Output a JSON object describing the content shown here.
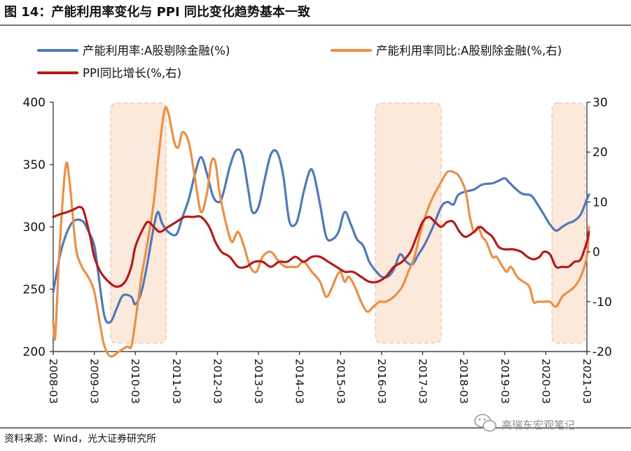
{
  "chart_data": {
    "type": "line",
    "title": "图 14：产能利用率变化与 PPI 同比变化趋势基本一致",
    "source": "资料来源：Wind，光大证券研究所",
    "watermark": "高瑞东宏观笔记",
    "x_start": "2008-03",
    "x_end": "2021-03",
    "x_tick_labels": [
      "2008-03",
      "2009-03",
      "2010-03",
      "2011-03",
      "2012-03",
      "2013-03",
      "2014-03",
      "2015-03",
      "2016-03",
      "2017-03",
      "2018-03",
      "2019-03",
      "2020-03",
      "2021-03"
    ],
    "y_left": {
      "min": 200,
      "max": 400,
      "ticks": [
        200,
        250,
        300,
        350,
        400
      ],
      "ylim": [
        200,
        400
      ]
    },
    "y_right": {
      "min": -20,
      "max": 30,
      "ticks": [
        -20,
        -10,
        0,
        10,
        20,
        30
      ],
      "ylim": [
        -20,
        30
      ]
    },
    "shaded_periods": [
      {
        "start": 2009.4,
        "end": 2010.75
      },
      {
        "start": 2015.85,
        "end": 2017.45
      },
      {
        "start": 2020.15,
        "end": 2020.95
      }
    ],
    "series": [
      {
        "name": "产能利用率:A股剔除金融(%)",
        "axis": "left",
        "color": "#4f79b8",
        "points": [
          [
            2008.0,
            248
          ],
          [
            2008.2,
            282
          ],
          [
            2008.45,
            303
          ],
          [
            2008.7,
            305
          ],
          [
            2008.85,
            297
          ],
          [
            2009.0,
            285
          ],
          [
            2009.1,
            262
          ],
          [
            2009.25,
            228
          ],
          [
            2009.4,
            224
          ],
          [
            2009.55,
            235
          ],
          [
            2009.7,
            245
          ],
          [
            2009.9,
            244
          ],
          [
            2010.0,
            238
          ],
          [
            2010.15,
            248
          ],
          [
            2010.3,
            272
          ],
          [
            2010.45,
            300
          ],
          [
            2010.55,
            312
          ],
          [
            2010.65,
            303
          ],
          [
            2010.8,
            296
          ],
          [
            2011.0,
            294
          ],
          [
            2011.15,
            308
          ],
          [
            2011.3,
            322
          ],
          [
            2011.45,
            342
          ],
          [
            2011.6,
            356
          ],
          [
            2011.75,
            342
          ],
          [
            2011.9,
            324
          ],
          [
            2012.05,
            320
          ],
          [
            2012.15,
            328
          ],
          [
            2012.3,
            348
          ],
          [
            2012.45,
            361
          ],
          [
            2012.6,
            358
          ],
          [
            2012.75,
            330
          ],
          [
            2012.85,
            312
          ],
          [
            2013.0,
            316
          ],
          [
            2013.15,
            338
          ],
          [
            2013.3,
            358
          ],
          [
            2013.45,
            360
          ],
          [
            2013.6,
            342
          ],
          [
            2013.75,
            305
          ],
          [
            2013.9,
            302
          ],
          [
            2014.0,
            312
          ],
          [
            2014.1,
            328
          ],
          [
            2014.25,
            345
          ],
          [
            2014.35,
            342
          ],
          [
            2014.5,
            318
          ],
          [
            2014.65,
            292
          ],
          [
            2014.8,
            290
          ],
          [
            2014.95,
            296
          ],
          [
            2015.1,
            312
          ],
          [
            2015.25,
            302
          ],
          [
            2015.4,
            290
          ],
          [
            2015.55,
            285
          ],
          [
            2015.7,
            272
          ],
          [
            2015.85,
            265
          ],
          [
            2016.0,
            260
          ],
          [
            2016.15,
            260
          ],
          [
            2016.3,
            266
          ],
          [
            2016.45,
            278
          ],
          [
            2016.6,
            272
          ],
          [
            2016.75,
            270
          ],
          [
            2016.9,
            278
          ],
          [
            2017.05,
            286
          ],
          [
            2017.25,
            300
          ],
          [
            2017.45,
            316
          ],
          [
            2017.6,
            320
          ],
          [
            2017.75,
            318
          ],
          [
            2017.85,
            325
          ],
          [
            2018.0,
            328
          ],
          [
            2018.25,
            330
          ],
          [
            2018.45,
            334
          ],
          [
            2018.7,
            335
          ],
          [
            2018.85,
            337
          ],
          [
            2019.0,
            339
          ],
          [
            2019.1,
            336
          ],
          [
            2019.25,
            331
          ],
          [
            2019.4,
            327
          ],
          [
            2019.5,
            326
          ],
          [
            2019.65,
            325
          ],
          [
            2019.8,
            318
          ],
          [
            2019.95,
            310
          ],
          [
            2020.1,
            302
          ],
          [
            2020.25,
            297
          ],
          [
            2020.4,
            300
          ],
          [
            2020.55,
            303
          ],
          [
            2020.7,
            305
          ],
          [
            2020.85,
            310
          ],
          [
            2021.0,
            322
          ],
          [
            2021.05,
            326
          ]
        ]
      },
      {
        "name": "产能利用率同比:A股剔除金融(%,右)",
        "axis": "right",
        "color": "#eb8f46",
        "points": [
          [
            2008.0,
            -14
          ],
          [
            2008.05,
            -17
          ],
          [
            2008.15,
            0
          ],
          [
            2008.3,
            17
          ],
          [
            2008.4,
            14
          ],
          [
            2008.55,
            1
          ],
          [
            2008.7,
            -3
          ],
          [
            2008.85,
            -5
          ],
          [
            2009.0,
            -8
          ],
          [
            2009.15,
            -15
          ],
          [
            2009.25,
            -19
          ],
          [
            2009.4,
            -21
          ],
          [
            2009.6,
            -20
          ],
          [
            2009.8,
            -19
          ],
          [
            2009.9,
            -19
          ],
          [
            2010.0,
            -14
          ],
          [
            2010.15,
            -5
          ],
          [
            2010.3,
            2
          ],
          [
            2010.45,
            10
          ],
          [
            2010.55,
            18
          ],
          [
            2010.7,
            28
          ],
          [
            2010.8,
            28
          ],
          [
            2010.95,
            22
          ],
          [
            2011.05,
            21
          ],
          [
            2011.15,
            24
          ],
          [
            2011.3,
            22
          ],
          [
            2011.45,
            15
          ],
          [
            2011.6,
            8
          ],
          [
            2011.75,
            12
          ],
          [
            2011.85,
            18
          ],
          [
            2011.95,
            18
          ],
          [
            2012.05,
            12
          ],
          [
            2012.2,
            6
          ],
          [
            2012.35,
            2
          ],
          [
            2012.5,
            4
          ],
          [
            2012.65,
            1
          ],
          [
            2012.8,
            -3
          ],
          [
            2012.95,
            -4
          ],
          [
            2013.1,
            -1
          ],
          [
            2013.3,
            0
          ],
          [
            2013.5,
            -2
          ],
          [
            2013.65,
            -3
          ],
          [
            2013.8,
            -3
          ],
          [
            2013.95,
            -3
          ],
          [
            2014.1,
            -2
          ],
          [
            2014.3,
            -4
          ],
          [
            2014.5,
            -6
          ],
          [
            2014.65,
            -9
          ],
          [
            2014.8,
            -7
          ],
          [
            2014.9,
            -5
          ],
          [
            2015.0,
            -4
          ],
          [
            2015.1,
            -6
          ],
          [
            2015.2,
            -5
          ],
          [
            2015.35,
            -7
          ],
          [
            2015.5,
            -10
          ],
          [
            2015.65,
            -12
          ],
          [
            2015.8,
            -11
          ],
          [
            2015.95,
            -10
          ],
          [
            2016.1,
            -10
          ],
          [
            2016.3,
            -9
          ],
          [
            2016.5,
            -7
          ],
          [
            2016.65,
            -4
          ],
          [
            2016.8,
            -1
          ],
          [
            2016.95,
            4
          ],
          [
            2017.1,
            8
          ],
          [
            2017.25,
            11
          ],
          [
            2017.45,
            14
          ],
          [
            2017.6,
            16
          ],
          [
            2017.75,
            16
          ],
          [
            2017.9,
            15
          ],
          [
            2018.05,
            12
          ],
          [
            2018.15,
            7
          ],
          [
            2018.25,
            4
          ],
          [
            2018.35,
            5
          ],
          [
            2018.45,
            3
          ],
          [
            2018.55,
            2
          ],
          [
            2018.7,
            -1
          ],
          [
            2018.8,
            -1
          ],
          [
            2018.95,
            -3
          ],
          [
            2019.05,
            -4
          ],
          [
            2019.15,
            -3
          ],
          [
            2019.3,
            -5
          ],
          [
            2019.45,
            -6
          ],
          [
            2019.6,
            -7
          ],
          [
            2019.7,
            -10
          ],
          [
            2019.8,
            -10
          ],
          [
            2019.95,
            -10
          ],
          [
            2020.1,
            -10
          ],
          [
            2020.25,
            -11
          ],
          [
            2020.4,
            -9
          ],
          [
            2020.55,
            -8
          ],
          [
            2020.7,
            -7
          ],
          [
            2020.85,
            -5
          ],
          [
            2021.0,
            -1
          ],
          [
            2021.05,
            5
          ]
        ]
      },
      {
        "name": "PPI同比增长(%,右)",
        "axis": "right",
        "color": "#b31b1b",
        "points": [
          [
            2008.0,
            7
          ],
          [
            2008.15,
            7.5
          ],
          [
            2008.35,
            8
          ],
          [
            2008.5,
            8.5
          ],
          [
            2008.65,
            9
          ],
          [
            2008.75,
            8
          ],
          [
            2008.9,
            3
          ],
          [
            2009.0,
            -1
          ],
          [
            2009.15,
            -4
          ],
          [
            2009.35,
            -6
          ],
          [
            2009.55,
            -7
          ],
          [
            2009.75,
            -6
          ],
          [
            2009.9,
            -3
          ],
          [
            2010.0,
            1
          ],
          [
            2010.15,
            4
          ],
          [
            2010.3,
            6
          ],
          [
            2010.45,
            5
          ],
          [
            2010.6,
            4
          ],
          [
            2010.8,
            5
          ],
          [
            2011.0,
            6
          ],
          [
            2011.2,
            7
          ],
          [
            2011.4,
            7
          ],
          [
            2011.6,
            7
          ],
          [
            2011.8,
            5
          ],
          [
            2011.95,
            2
          ],
          [
            2012.1,
            0
          ],
          [
            2012.3,
            -1
          ],
          [
            2012.5,
            -3
          ],
          [
            2012.7,
            -3
          ],
          [
            2012.9,
            -2
          ],
          [
            2013.1,
            -2
          ],
          [
            2013.3,
            -3
          ],
          [
            2013.5,
            -2
          ],
          [
            2013.7,
            -2
          ],
          [
            2013.9,
            -1
          ],
          [
            2014.1,
            -2
          ],
          [
            2014.3,
            -1
          ],
          [
            2014.5,
            -1
          ],
          [
            2014.7,
            -2
          ],
          [
            2014.9,
            -3
          ],
          [
            2015.1,
            -4
          ],
          [
            2015.3,
            -4
          ],
          [
            2015.5,
            -5
          ],
          [
            2015.7,
            -6
          ],
          [
            2015.9,
            -6
          ],
          [
            2016.1,
            -5
          ],
          [
            2016.3,
            -3
          ],
          [
            2016.5,
            -2
          ],
          [
            2016.7,
            0
          ],
          [
            2016.85,
            3
          ],
          [
            2017.0,
            6
          ],
          [
            2017.15,
            7
          ],
          [
            2017.3,
            6
          ],
          [
            2017.45,
            5
          ],
          [
            2017.6,
            6
          ],
          [
            2017.75,
            6
          ],
          [
            2017.9,
            4
          ],
          [
            2018.05,
            3
          ],
          [
            2018.25,
            4
          ],
          [
            2018.4,
            5
          ],
          [
            2018.55,
            4
          ],
          [
            2018.7,
            3
          ],
          [
            2018.85,
            1
          ],
          [
            2019.0,
            0.5
          ],
          [
            2019.2,
            0.5
          ],
          [
            2019.4,
            0
          ],
          [
            2019.55,
            -1
          ],
          [
            2019.7,
            -1.5
          ],
          [
            2019.85,
            -1
          ],
          [
            2019.95,
            0
          ],
          [
            2020.1,
            -0.5
          ],
          [
            2020.25,
            -3
          ],
          [
            2020.4,
            -3
          ],
          [
            2020.55,
            -3
          ],
          [
            2020.7,
            -2
          ],
          [
            2020.85,
            -1.5
          ],
          [
            2021.0,
            2
          ],
          [
            2021.05,
            4
          ]
        ]
      }
    ]
  }
}
